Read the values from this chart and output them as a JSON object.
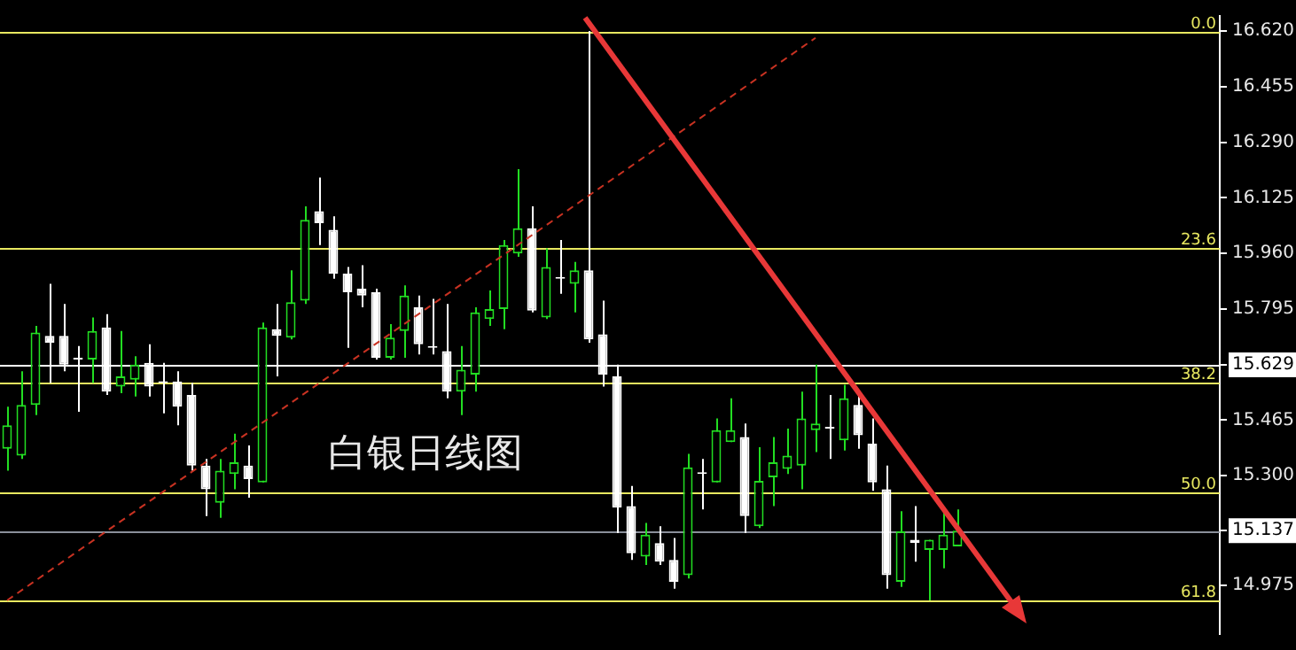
{
  "chart_data": {
    "type": "candlestick",
    "colors": [
      "#22dd22",
      "#22dd22",
      "#22dd22",
      "#ffffff",
      "#ffffff",
      "#ffffff",
      "#22dd22",
      "#ffffff",
      "#22dd22",
      "#22dd22",
      "#ffffff",
      "#ffffff",
      "#ffffff",
      "#ffffff",
      "#ffffff",
      "#22dd22",
      "#22dd22",
      "#ffffff",
      "#22dd22",
      "#ffffff",
      "#22dd22",
      "#22dd22",
      "#ffffff",
      "#ffffff",
      "#ffffff",
      "#ffffff",
      "#ffffff",
      "#22dd22",
      "#22dd22",
      "#ffffff",
      "#ffffff",
      "#ffffff",
      "#22dd22",
      "#22dd22",
      "#22dd22",
      "#22dd22",
      "#22dd22",
      "#ffffff",
      "#22dd22",
      "#ffffff",
      "#22dd22",
      "#ffffff",
      "#ffffff",
      "#ffffff",
      "#ffffff",
      "#22dd22",
      "#ffffff",
      "#ffffff",
      "#22dd22",
      "#ffffff",
      "#22dd22",
      "#22dd22",
      "#ffffff",
      "#22dd22",
      "#22dd22",
      "#22dd22",
      "#22dd22",
      "#22dd22",
      "#ffffff",
      "#22dd22",
      "#ffffff",
      "#ffffff",
      "#ffffff",
      "#22dd22",
      "#ffffff",
      "#22dd22",
      "#22dd22",
      "#22dd22",
      null,
      null,
      null,
      null,
      null,
      null,
      null,
      null,
      null,
      null,
      null,
      null,
      null,
      null,
      null,
      null,
      null,
      null
    ],
    "categories": [
      null,
      null,
      null,
      null,
      null,
      null,
      null,
      null,
      null,
      null,
      null,
      null,
      null,
      null,
      null,
      null,
      null,
      null,
      null,
      null,
      null,
      null,
      null,
      null,
      null,
      null,
      null,
      null,
      null,
      null,
      null,
      null,
      null,
      null,
      null,
      null,
      null,
      null,
      null,
      null,
      null,
      null,
      null,
      null,
      null,
      null,
      null,
      null,
      null,
      null,
      null,
      null,
      null,
      null,
      null,
      null,
      null,
      null,
      null,
      null,
      null,
      null,
      null,
      null,
      null,
      null,
      null,
      null,
      null,
      null,
      null,
      null,
      null,
      null,
      null,
      null,
      null,
      null,
      null,
      null,
      null,
      null,
      null,
      null,
      null,
      null
    ],
    "ohlc": [
      [
        15.38,
        15.505,
        15.315,
        15.45
      ],
      [
        15.36,
        15.61,
        15.35,
        15.51
      ],
      [
        15.51,
        15.745,
        15.48,
        15.725
      ],
      [
        15.715,
        15.87,
        15.575,
        15.695
      ],
      [
        15.715,
        15.81,
        15.61,
        15.63
      ],
      [
        15.645,
        15.685,
        15.49,
        15.645
      ],
      [
        15.645,
        15.77,
        15.575,
        15.73
      ],
      [
        15.74,
        15.78,
        15.54,
        15.55
      ],
      [
        15.565,
        15.73,
        15.545,
        15.595
      ],
      [
        15.585,
        15.655,
        15.535,
        15.63
      ],
      [
        15.635,
        15.69,
        15.535,
        15.565
      ],
      [
        15.575,
        15.635,
        15.485,
        15.575
      ],
      [
        15.58,
        15.61,
        15.45,
        15.505
      ],
      [
        15.54,
        15.575,
        15.315,
        15.33
      ],
      [
        15.33,
        15.35,
        15.18,
        15.26
      ],
      [
        15.22,
        15.35,
        15.175,
        15.315
      ],
      [
        15.305,
        15.425,
        15.26,
        15.34
      ],
      [
        15.33,
        15.39,
        15.235,
        15.29
      ],
      [
        15.28,
        15.755,
        15.28,
        15.74
      ],
      [
        15.735,
        15.81,
        15.595,
        15.715
      ],
      [
        15.71,
        15.91,
        15.705,
        15.815
      ],
      [
        15.82,
        16.1,
        15.81,
        16.06
      ],
      [
        16.085,
        16.185,
        15.985,
        16.05
      ],
      [
        16.03,
        16.07,
        15.885,
        15.9
      ],
      [
        15.9,
        15.92,
        15.68,
        15.845
      ],
      [
        15.855,
        15.925,
        15.8,
        15.835
      ],
      [
        15.845,
        15.855,
        15.645,
        15.65
      ],
      [
        15.65,
        15.75,
        15.645,
        15.71
      ],
      [
        15.73,
        15.865,
        15.65,
        15.835
      ],
      [
        15.8,
        15.835,
        15.66,
        15.69
      ],
      [
        15.68,
        15.825,
        15.66,
        15.68
      ],
      [
        15.67,
        15.81,
        15.53,
        15.55
      ],
      [
        15.55,
        15.685,
        15.48,
        15.615
      ],
      [
        15.6,
        15.8,
        15.55,
        15.785
      ],
      [
        15.765,
        15.85,
        15.745,
        15.795
      ],
      [
        15.795,
        16.0,
        15.735,
        15.985
      ],
      [
        15.96,
        16.21,
        15.95,
        16.035
      ],
      [
        16.035,
        16.1,
        15.785,
        15.79
      ],
      [
        15.77,
        15.975,
        15.765,
        15.92
      ],
      [
        15.885,
        16.0,
        15.84,
        15.885
      ],
      [
        15.87,
        15.935,
        15.785,
        15.91
      ],
      [
        15.91,
        16.62,
        15.695,
        15.705
      ],
      [
        15.72,
        15.82,
        15.565,
        15.6
      ],
      [
        15.595,
        15.63,
        15.13,
        15.205
      ],
      [
        15.21,
        15.27,
        15.05,
        15.07
      ],
      [
        15.06,
        15.16,
        15.035,
        15.125
      ],
      [
        15.1,
        15.15,
        15.035,
        15.045
      ],
      [
        15.05,
        15.115,
        14.965,
        14.985
      ],
      [
        15.005,
        15.365,
        14.995,
        15.325
      ],
      [
        15.305,
        15.35,
        15.2,
        15.305
      ],
      [
        15.28,
        15.47,
        15.28,
        15.435
      ],
      [
        15.4,
        15.53,
        15.4,
        15.435
      ],
      [
        15.415,
        15.455,
        15.13,
        15.18
      ],
      [
        15.15,
        15.385,
        15.145,
        15.285
      ],
      [
        15.295,
        15.415,
        15.21,
        15.34
      ],
      [
        15.32,
        15.44,
        15.305,
        15.36
      ],
      [
        15.33,
        15.55,
        15.26,
        15.47
      ],
      [
        15.435,
        15.63,
        15.37,
        15.455
      ],
      [
        15.44,
        15.54,
        15.35,
        15.44
      ],
      [
        15.405,
        15.57,
        15.375,
        15.53
      ],
      [
        15.51,
        15.55,
        15.38,
        15.42
      ],
      [
        15.395,
        15.47,
        15.255,
        15.28
      ],
      [
        15.26,
        15.33,
        14.965,
        15.005
      ],
      [
        14.985,
        15.195,
        14.97,
        15.135
      ],
      [
        15.11,
        15.21,
        15.045,
        15.1
      ],
      [
        15.08,
        15.11,
        14.93,
        15.11
      ],
      [
        15.08,
        15.19,
        15.025,
        15.125
      ],
      [
        15.09,
        15.2,
        15.09,
        15.137
      ],
      null,
      null,
      null,
      null,
      null,
      null,
      null,
      null,
      null,
      null,
      null,
      null,
      null,
      null,
      null,
      null,
      null,
      null
    ],
    "series": [
      {
        "type": "line",
        "color": "#c83222",
        "line_style": "dashed",
        "values": [
          14.93,
          null,
          null,
          null,
          null,
          null,
          null,
          null,
          null,
          null,
          null,
          null,
          null,
          null,
          null,
          null,
          null,
          null,
          null,
          null,
          null,
          null,
          null,
          null,
          null,
          null,
          null,
          null,
          null,
          null,
          null,
          null,
          null,
          null,
          null,
          null,
          null,
          null,
          null,
          null,
          null,
          null,
          null,
          null,
          null,
          null,
          null,
          null,
          null,
          null,
          null,
          null,
          null,
          null,
          null,
          null,
          null,
          16.6,
          null,
          null,
          null,
          null,
          null,
          null,
          null,
          null,
          null,
          null,
          null,
          null,
          null,
          null,
          null,
          null,
          null,
          null,
          null,
          null,
          null,
          null,
          null,
          null,
          null,
          null,
          null,
          null
        ]
      }
    ],
    "ylim": [
      14.83,
      16.665
    ],
    "yticks": [
      14.975,
      15.137,
      {
        "value": 15.3,
        "label": "15.300"
      },
      15.465,
      15.629,
      15.795,
      {
        "value": 15.96,
        "label": "15.960"
      },
      16.125,
      {
        "value": 16.29,
        "label": "16.290"
      },
      16.455,
      {
        "value": 16.62,
        "label": "16.620"
      }
    ],
    "ref_lines": [
      {
        "axis": "y",
        "value": 16.62,
        "color": "#e8e860"
      },
      {
        "axis": "y",
        "value": 15.975,
        "color": "#e8e860"
      },
      {
        "axis": "y",
        "value": 15.575,
        "color": "#e8e860"
      },
      {
        "axis": "y",
        "value": 15.252,
        "color": "#e8e860"
      },
      {
        "axis": "y",
        "value": 14.93,
        "color": "#e8e860"
      },
      {
        "axis": "y",
        "value": 15.629,
        "color": "#ffffff"
      },
      {
        "axis": "y",
        "value": 15.137,
        "color": "#8a8f9a"
      }
    ],
    "annotations": [
      "白银日线图",
      {
        "text": "0.0",
        "y": 16.62
      },
      {
        "text": "23.6",
        "y": 15.975
      },
      {
        "text": "38.2",
        "y": 15.575
      },
      {
        "text": "50.0",
        "y": 15.252
      },
      {
        "text": "61.8",
        "y": 14.93
      }
    ],
    "grid": false,
    "legend": false
  }
}
